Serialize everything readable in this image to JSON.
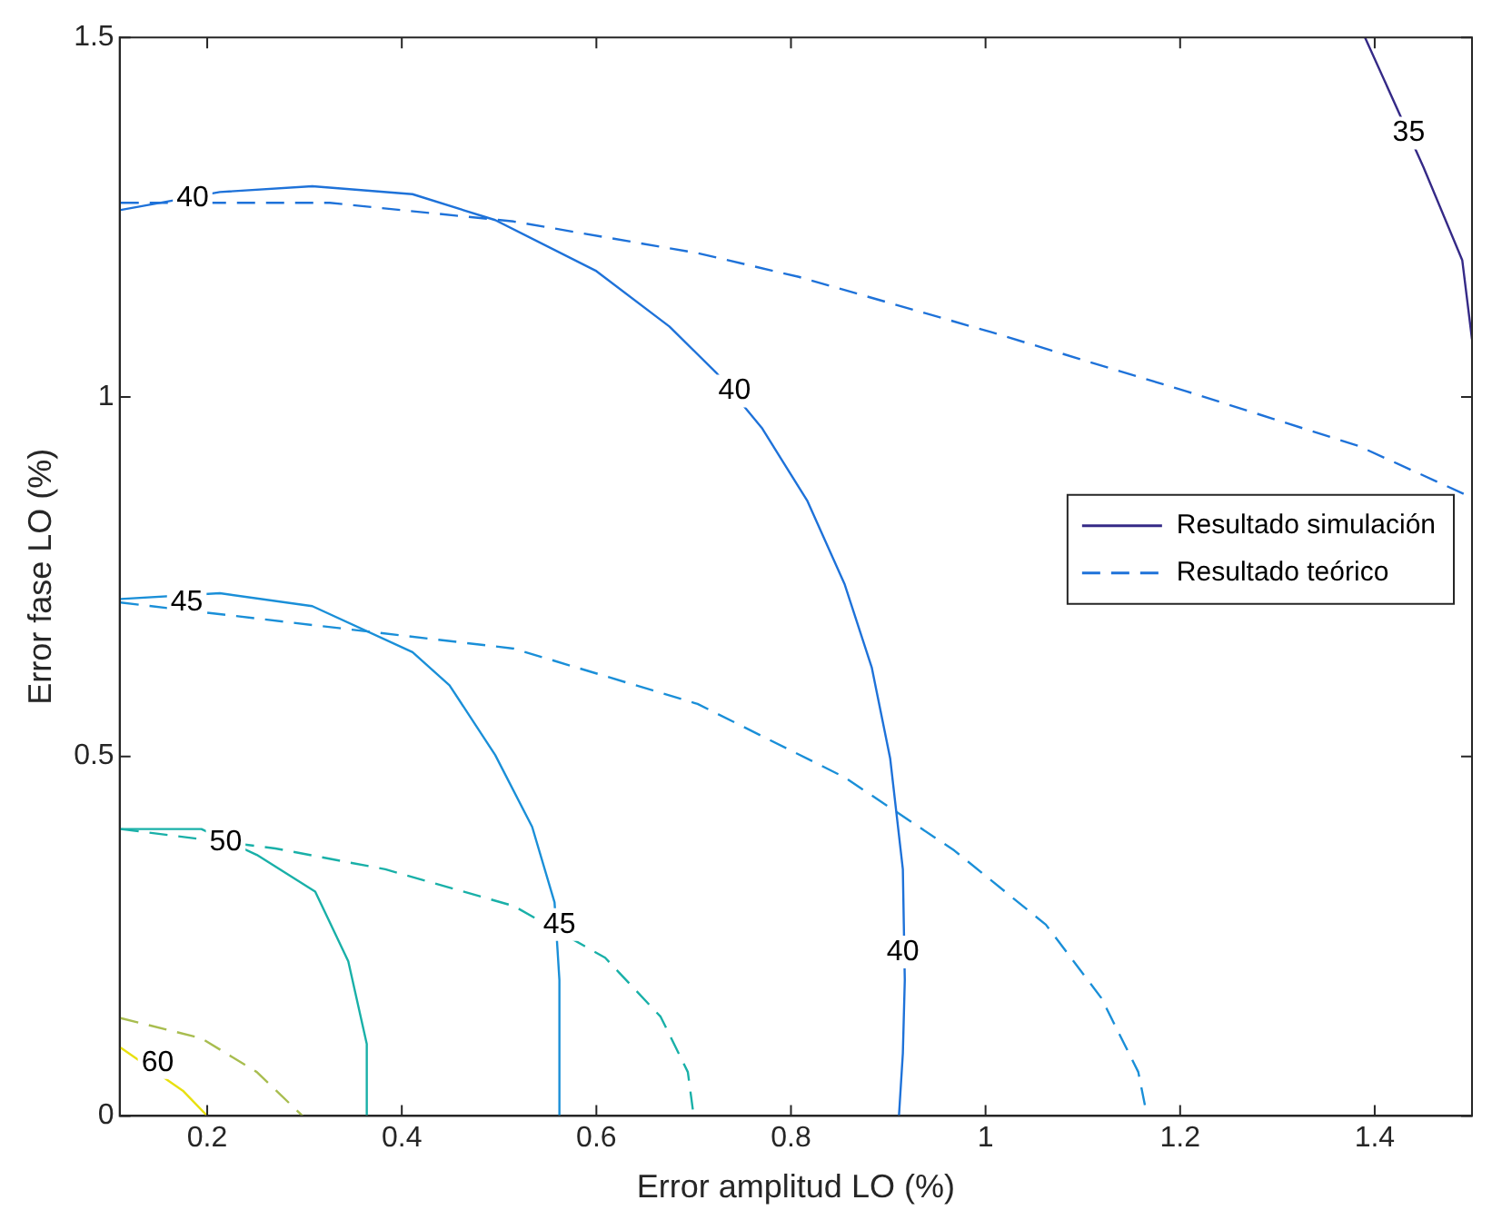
{
  "chart_data": {
    "type": "line",
    "xlabel": "Error amplitud LO (%)",
    "ylabel": "Error fase LO (%)",
    "xlim": [
      0.11,
      1.5
    ],
    "xticks": [
      0.2,
      0.4,
      0.6,
      0.8,
      1,
      1.2,
      1.4
    ],
    "ylim": [
      0,
      1.5
    ],
    "yticks": [
      0,
      0.5,
      1,
      1.5
    ],
    "grid": false,
    "legend": "right",
    "series": [
      {
        "name": "Resultado simulación",
        "color": "#352a87",
        "line_style": "solid",
        "x": [
          1.39,
          1.45,
          1.49,
          1.5
        ],
        "values": [
          1.5,
          1.32,
          1.19,
          1.08
        ]
      },
      {
        "color": "#1e72d9",
        "line_style": "solid",
        "x": [
          0.111,
          0.213,
          0.308,
          0.411,
          0.496,
          0.6,
          0.675,
          0.723,
          0.77,
          0.817,
          0.855,
          0.883,
          0.902,
          0.915,
          0.917,
          0.915,
          0.911
        ],
        "values": [
          1.26,
          1.285,
          1.293,
          1.282,
          1.246,
          1.175,
          1.098,
          1.034,
          0.957,
          0.855,
          0.74,
          0.624,
          0.497,
          0.343,
          0.189,
          0.087,
          0
        ]
      },
      {
        "color": "#1a8fd8",
        "line_style": "solid",
        "x": [
          0.111,
          0.213,
          0.308,
          0.411,
          0.449,
          0.496,
          0.534,
          0.557,
          0.562,
          0.562
        ],
        "values": [
          0.719,
          0.727,
          0.709,
          0.645,
          0.599,
          0.502,
          0.402,
          0.297,
          0.189,
          0
        ]
      },
      {
        "color": "#19b0a8",
        "line_style": "solid",
        "x": [
          0.111,
          0.194,
          0.251,
          0.311,
          0.345,
          0.364,
          0.364
        ],
        "values": [
          0.399,
          0.399,
          0.363,
          0.312,
          0.215,
          0.1,
          0
        ]
      },
      {
        "color": "#e8e010",
        "line_style": "solid",
        "x": [
          0.111,
          0.175,
          0.2
        ],
        "values": [
          0.095,
          0.035,
          0
        ]
      },
      {
        "name": "Resultado teórico",
        "color": "#1e72d9",
        "line_style": "dashed",
        "x": [
          0.111,
          0.326,
          0.515,
          0.704,
          0.808,
          1.006,
          1.206,
          1.383,
          1.5
        ],
        "values": [
          1.27,
          1.27,
          1.244,
          1.2,
          1.167,
          1.09,
          1.008,
          0.932,
          0.86
        ]
      },
      {
        "color": "#1a8fd8",
        "line_style": "dashed",
        "x": [
          0.111,
          0.515,
          0.704,
          0.855,
          0.968,
          1.062,
          1.119,
          1.157,
          1.166
        ],
        "values": [
          0.714,
          0.65,
          0.573,
          0.471,
          0.369,
          0.266,
          0.164,
          0.061,
          0
        ]
      },
      {
        "color": "#19b0a8",
        "line_style": "dashed",
        "x": [
          0.111,
          0.27,
          0.383,
          0.515,
          0.609,
          0.666,
          0.694,
          0.7
        ],
        "values": [
          0.399,
          0.372,
          0.343,
          0.292,
          0.22,
          0.138,
          0.061,
          0
        ]
      },
      {
        "color": "#a8bd4f",
        "line_style": "dashed",
        "x": [
          0.111,
          0.194,
          0.251,
          0.298
        ],
        "values": [
          0.136,
          0.108,
          0.061,
          0
        ]
      }
    ],
    "annotations": [
      {
        "text": "35",
        "x": 1.435,
        "y": 1.367
      },
      {
        "text": "40",
        "x": 0.185,
        "y": 1.277
      },
      {
        "text": "40",
        "x": 0.742,
        "y": 1.008
      },
      {
        "text": "40",
        "x": 0.915,
        "y": 0.228
      },
      {
        "text": "45",
        "x": 0.179,
        "y": 0.714
      },
      {
        "text": "45",
        "x": 0.562,
        "y": 0.266
      },
      {
        "text": "50",
        "x": 0.219,
        "y": 0.381
      },
      {
        "text": "60",
        "x": 0.149,
        "y": 0.074
      }
    ]
  }
}
